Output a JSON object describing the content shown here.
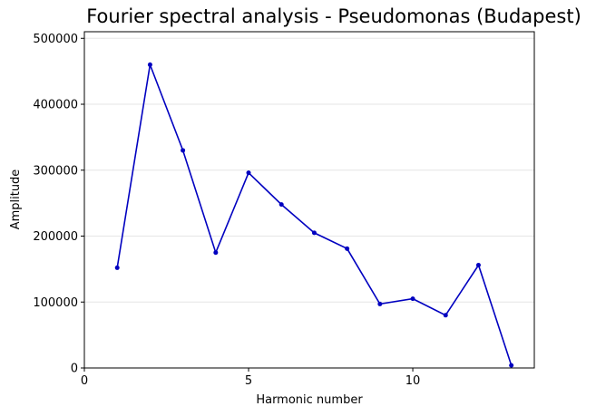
{
  "chart_data": {
    "type": "line",
    "title": "Fourier spectral analysis - Pseudomonas (Budapest)",
    "xlabel": "Harmonic number",
    "ylabel": "Amplitude",
    "xlim": [
      0,
      13.7
    ],
    "ylim": [
      0,
      510000
    ],
    "xticks": [
      0,
      5,
      10
    ],
    "yticks": [
      0,
      100000,
      200000,
      300000,
      400000,
      500000
    ],
    "grid": "horizontal",
    "series": [
      {
        "color": "#0000c0",
        "x": [
          1,
          2,
          3,
          4,
          5,
          6,
          7,
          8,
          9,
          10,
          11,
          12,
          13
        ],
        "y": [
          152000,
          460000,
          330000,
          175000,
          296000,
          248000,
          205000,
          181000,
          97000,
          105000,
          80000,
          156000,
          4000
        ]
      }
    ]
  }
}
